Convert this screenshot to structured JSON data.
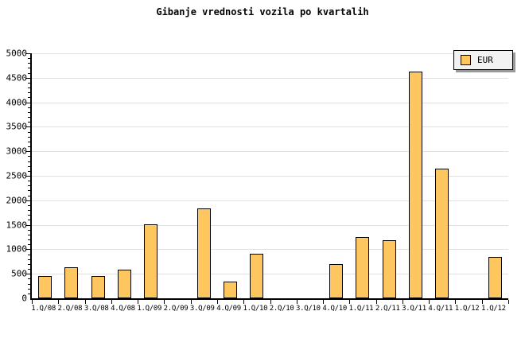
{
  "chart_data": {
    "type": "bar",
    "title": "Gibanje vrednosti vozila po kvartalih",
    "categories": [
      "1.Q/08",
      "2.Q/08",
      "3.Q/08",
      "4.Q/08",
      "1.Q/09",
      "2.Q/09",
      "3.Q/09",
      "4.Q/09",
      "1.Q/10",
      "2.Q/10",
      "3.Q/10",
      "4.Q/10",
      "1.Q/11",
      "2.Q/11",
      "3.Q/11",
      "4.Q/11",
      "1.Q/12",
      "1.Q/12"
    ],
    "series": [
      {
        "name": "EUR",
        "values": [
          460,
          640,
          460,
          590,
          1510,
          0,
          1840,
          340,
          910,
          0,
          0,
          700,
          1250,
          1180,
          4630,
          2650,
          0,
          850
        ]
      }
    ],
    "xlabel": "",
    "ylabel": "",
    "ylim": [
      0,
      5000
    ],
    "y_major_step": 500,
    "y_minor_step": 100,
    "grid": "horizontal-major",
    "legend_position": "top-right",
    "colors": {
      "bar_fill": "#FDC65E",
      "bar_border": "#000000",
      "grid": "#E0E0E0",
      "axis": "#000000",
      "text": "#000000",
      "legend_bg": "#F2F2F2",
      "legend_shadow": "#999999",
      "background": "#FFFFFF"
    }
  }
}
